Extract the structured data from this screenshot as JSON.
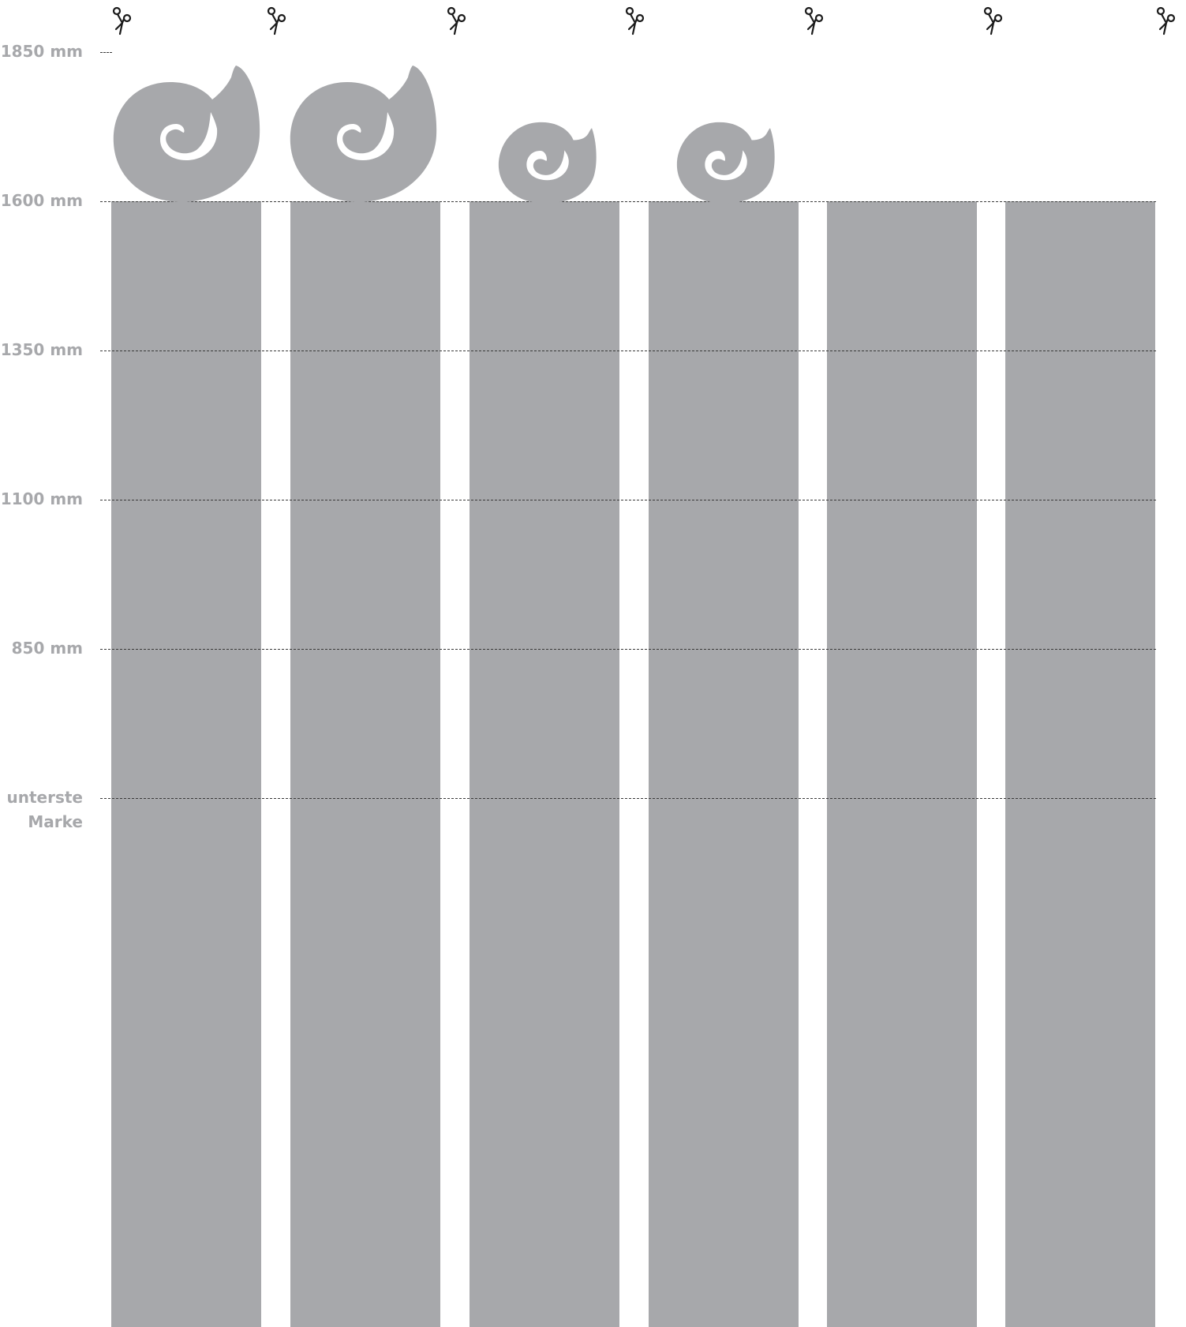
{
  "marks": {
    "m1850": "1850 mm",
    "m1600": "1600 mm",
    "m1350": "1350 mm",
    "m1100": "1100 mm",
    "m850": "850 mm",
    "bottom_line1": "unterste",
    "bottom_line2": "Marke"
  },
  "strips": [
    {
      "snail": "large"
    },
    {
      "snail": "large"
    },
    {
      "snail": "small"
    },
    {
      "snail": "small"
    },
    {
      "snail": "none"
    },
    {
      "snail": "none"
    }
  ],
  "colors": {
    "strip_gray": "#a7a8ab",
    "label_gray": "#a7a8ab",
    "dash_line": "#3a3a3a",
    "scissors": "#1a1a1a"
  },
  "icons": {
    "cut_marker": "scissors-icon",
    "decoration": "snail-shell-icon"
  }
}
